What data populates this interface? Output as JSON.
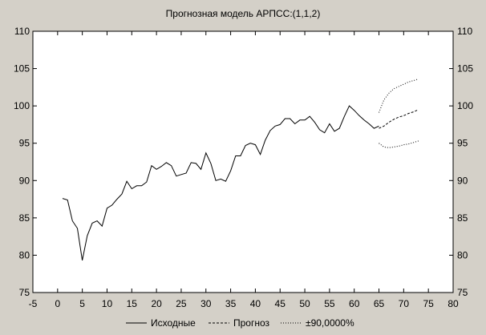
{
  "chart_data": {
    "type": "line",
    "title": "Прогнозная модель АРПСС:(1,1,2)",
    "xlabel": "",
    "ylabel": "",
    "xlim": [
      -5,
      80
    ],
    "ylim": [
      75,
      110
    ],
    "x_ticks": [
      -5,
      0,
      5,
      10,
      15,
      20,
      25,
      30,
      35,
      40,
      45,
      50,
      55,
      60,
      65,
      70,
      75,
      80
    ],
    "y_ticks": [
      75,
      80,
      85,
      90,
      95,
      100,
      105,
      110
    ],
    "grid": false,
    "legend_position": "bottom",
    "series": [
      {
        "name": "Исходные",
        "style": "solid",
        "color": "#000000",
        "x": [
          1,
          2,
          3,
          4,
          5,
          6,
          7,
          8,
          9,
          10,
          11,
          12,
          13,
          14,
          15,
          16,
          17,
          18,
          19,
          20,
          21,
          22,
          23,
          24,
          25,
          26,
          27,
          28,
          29,
          30,
          31,
          32,
          33,
          34,
          35,
          36,
          37,
          38,
          39,
          40,
          41,
          42,
          43,
          44,
          45,
          46,
          47,
          48,
          49,
          50,
          51,
          52,
          53,
          54,
          55,
          56,
          57,
          58,
          59,
          60,
          61,
          62,
          63,
          64,
          65
        ],
        "y": [
          87.6,
          87.4,
          84.6,
          83.6,
          79.3,
          82.6,
          84.3,
          84.6,
          83.9,
          86.3,
          86.7,
          87.5,
          88.2,
          89.9,
          88.9,
          89.3,
          89.3,
          89.8,
          92.0,
          91.5,
          91.9,
          92.4,
          92.0,
          90.6,
          90.8,
          91.0,
          92.4,
          92.3,
          91.5,
          93.7,
          92.3,
          90.0,
          90.2,
          89.9,
          91.3,
          93.3,
          93.3,
          94.7,
          95.0,
          94.8,
          93.5,
          95.4,
          96.7,
          97.3,
          97.5,
          98.3,
          98.3,
          97.6,
          98.1,
          98.1,
          98.6,
          97.8,
          96.8,
          96.4,
          97.6,
          96.6,
          97.0,
          98.6,
          100.0,
          99.4,
          98.7,
          98.1,
          97.6,
          97.0,
          97.3
        ]
      },
      {
        "name": "Прогноз",
        "style": "dashed",
        "color": "#000000",
        "x": [
          65,
          66,
          67,
          68,
          69,
          70,
          71,
          72,
          73
        ],
        "y": [
          97.0,
          97.3,
          97.8,
          98.2,
          98.5,
          98.7,
          99.0,
          99.2,
          99.5
        ]
      },
      {
        "name": "±90,0000%",
        "style": "dotted",
        "color": "#000000",
        "bands": [
          {
            "x": [
              65,
              66,
              67,
              68,
              69,
              70,
              71,
              72,
              73
            ],
            "y": [
              99.1,
              100.8,
              101.7,
              102.3,
              102.6,
              102.9,
              103.2,
              103.4,
              103.6
            ]
          },
          {
            "x": [
              65,
              66,
              67,
              68,
              69,
              70,
              71,
              72,
              73
            ],
            "y": [
              95.0,
              94.5,
              94.4,
              94.5,
              94.6,
              94.8,
              94.9,
              95.1,
              95.3
            ]
          }
        ]
      }
    ]
  }
}
